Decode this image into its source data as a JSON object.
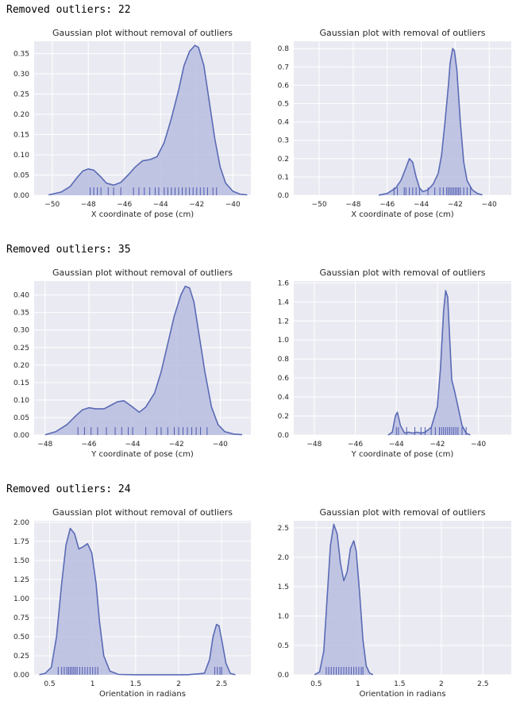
{
  "header_labels": [
    "Removed outliers: 22",
    "Removed outliers: 35",
    "Removed outliers: 24"
  ],
  "colors": {
    "plot_bg": "#eaeaf2",
    "grid": "#ffffff",
    "line": "#5a6bb5",
    "fill": "#b8bde0",
    "rug": "#4e5bb0"
  },
  "chart_data": [
    {
      "type": "area",
      "title": "Gaussian plot without removal of outliers",
      "xlabel": "X coordinate of pose (cm)",
      "xlim": [
        -51,
        -39
      ],
      "ylim": [
        0,
        0.38
      ],
      "xticks": [
        -50,
        -48,
        -46,
        -44,
        -42,
        -40
      ],
      "yticks": [
        0.0,
        0.05,
        0.1,
        0.15,
        0.2,
        0.25,
        0.3,
        0.35
      ],
      "ytick_decimals": 2,
      "grid": true,
      "x": [
        -50.2,
        -49.5,
        -49.0,
        -48.6,
        -48.3,
        -48.0,
        -47.7,
        -47.3,
        -47.0,
        -46.6,
        -46.2,
        -45.8,
        -45.4,
        -45.0,
        -44.6,
        -44.2,
        -43.8,
        -43.4,
        -43.0,
        -42.7,
        -42.4,
        -42.1,
        -41.9,
        -41.6,
        -41.3,
        -41.0,
        -40.7,
        -40.4,
        -40.0,
        -39.6,
        -39.2
      ],
      "y": [
        0.001,
        0.008,
        0.022,
        0.045,
        0.06,
        0.065,
        0.062,
        0.045,
        0.03,
        0.025,
        0.032,
        0.05,
        0.07,
        0.085,
        0.088,
        0.095,
        0.13,
        0.19,
        0.26,
        0.32,
        0.355,
        0.37,
        0.365,
        0.32,
        0.23,
        0.14,
        0.07,
        0.03,
        0.01,
        0.003,
        0.001
      ],
      "rug": [
        -47.9,
        -47.7,
        -47.5,
        -47.3,
        -46.9,
        -46.6,
        -46.2,
        -45.5,
        -45.2,
        -44.9,
        -44.6,
        -44.3,
        -44.1,
        -43.8,
        -43.6,
        -43.4,
        -43.2,
        -43.0,
        -42.8,
        -42.6,
        -42.4,
        -42.2,
        -42.0,
        -41.8,
        -41.6,
        -41.4,
        -41.1,
        -40.9
      ]
    },
    {
      "type": "area",
      "title": "Gaussian plot with removal of outliers",
      "xlabel": "X coordinate of pose (cm)",
      "xlim": [
        -51.5,
        -38.7
      ],
      "ylim": [
        0,
        0.84
      ],
      "xticks": [
        -50,
        -48,
        -46,
        -44,
        -42,
        -40
      ],
      "yticks": [
        0.0,
        0.1,
        0.2,
        0.3,
        0.4,
        0.5,
        0.6,
        0.7,
        0.8
      ],
      "ytick_decimals": 1,
      "grid": true,
      "x": [
        -46.5,
        -46.0,
        -45.5,
        -45.2,
        -44.9,
        -44.7,
        -44.5,
        -44.3,
        -44.1,
        -43.9,
        -43.6,
        -43.3,
        -43.0,
        -42.8,
        -42.6,
        -42.4,
        -42.3,
        -42.15,
        -42.05,
        -41.9,
        -41.7,
        -41.5,
        -41.3,
        -41.0,
        -40.7,
        -40.4
      ],
      "y": [
        0.001,
        0.01,
        0.04,
        0.08,
        0.15,
        0.2,
        0.18,
        0.1,
        0.04,
        0.02,
        0.03,
        0.06,
        0.12,
        0.22,
        0.4,
        0.6,
        0.72,
        0.8,
        0.79,
        0.68,
        0.4,
        0.18,
        0.08,
        0.03,
        0.01,
        0.002
      ],
      "rug": [
        -45.6,
        -45.4,
        -45.0,
        -44.9,
        -44.7,
        -44.5,
        -44.3,
        -44.1,
        -43.6,
        -43.2,
        -42.9,
        -42.7,
        -42.5,
        -42.4,
        -42.3,
        -42.2,
        -42.1,
        -42.0,
        -41.9,
        -41.8,
        -41.7,
        -41.5,
        -41.3,
        -41.1
      ]
    },
    {
      "type": "area",
      "title": "Gaussian plot without removal of outliers",
      "xlabel": "Y coordinate of pose (cm)",
      "xlim": [
        -48.5,
        -38.6
      ],
      "ylim": [
        0,
        0.44
      ],
      "xticks": [
        -48,
        -46,
        -44,
        -42,
        -40
      ],
      "yticks": [
        0.0,
        0.05,
        0.1,
        0.15,
        0.2,
        0.25,
        0.3,
        0.35,
        0.4
      ],
      "ytick_decimals": 2,
      "grid": true,
      "x": [
        -48.0,
        -47.5,
        -47.0,
        -46.6,
        -46.3,
        -46.0,
        -45.7,
        -45.3,
        -45.0,
        -44.7,
        -44.4,
        -44.0,
        -43.7,
        -43.4,
        -43.0,
        -42.7,
        -42.4,
        -42.1,
        -41.8,
        -41.6,
        -41.4,
        -41.2,
        -41.0,
        -40.7,
        -40.4,
        -40.1,
        -39.8,
        -39.4,
        -39.0
      ],
      "y": [
        0.001,
        0.01,
        0.03,
        0.055,
        0.072,
        0.078,
        0.075,
        0.075,
        0.085,
        0.095,
        0.098,
        0.08,
        0.065,
        0.08,
        0.12,
        0.18,
        0.26,
        0.34,
        0.4,
        0.425,
        0.42,
        0.38,
        0.3,
        0.18,
        0.08,
        0.03,
        0.01,
        0.003,
        0.001
      ],
      "rug": [
        -46.5,
        -46.2,
        -45.9,
        -45.6,
        -45.2,
        -44.8,
        -44.5,
        -44.2,
        -44.0,
        -43.4,
        -42.9,
        -42.7,
        -42.4,
        -42.1,
        -41.9,
        -41.7,
        -41.5,
        -41.3,
        -41.1,
        -40.9,
        -40.6
      ]
    },
    {
      "type": "area",
      "title": "Gaussian plot with removal of outliers",
      "xlabel": "Y coordinate of pose (cm)",
      "xlim": [
        -49.0,
        -38.4
      ],
      "ylim": [
        0,
        1.62
      ],
      "xticks": [
        -48,
        -46,
        -44,
        -42,
        -40
      ],
      "yticks": [
        0.0,
        0.2,
        0.4,
        0.6,
        0.8,
        1.0,
        1.2,
        1.4,
        1.6
      ],
      "ytick_decimals": 1,
      "grid": true,
      "x": [
        -44.4,
        -44.2,
        -44.05,
        -43.95,
        -43.8,
        -43.6,
        -43.4,
        -43.2,
        -43.0,
        -42.8,
        -42.6,
        -42.3,
        -42.0,
        -41.85,
        -41.7,
        -41.6,
        -41.5,
        -41.4,
        -41.3,
        -41.15,
        -41.0,
        -40.8,
        -40.6,
        -40.4
      ],
      "y": [
        0.001,
        0.03,
        0.2,
        0.24,
        0.1,
        0.02,
        0.03,
        0.02,
        0.03,
        0.02,
        0.03,
        0.08,
        0.3,
        0.7,
        1.3,
        1.52,
        1.45,
        1.0,
        0.58,
        0.45,
        0.3,
        0.1,
        0.02,
        0.002
      ],
      "rug": [
        -44.0,
        -43.9,
        -43.5,
        -43.1,
        -42.8,
        -42.6,
        -42.3,
        -42.1,
        -41.9,
        -41.8,
        -41.7,
        -41.6,
        -41.5,
        -41.4,
        -41.3,
        -41.2,
        -41.1,
        -41.0,
        -40.8,
        -40.6
      ]
    },
    {
      "type": "area",
      "title": "Gaussian plot without removal of outliers",
      "xlabel": "Orientation in radians",
      "xlim": [
        0.32,
        2.84
      ],
      "ylim": [
        0,
        2.02
      ],
      "xticks": [
        0.5,
        1.0,
        1.5,
        2.0,
        2.5
      ],
      "yticks": [
        0.0,
        0.25,
        0.5,
        0.75,
        1.0,
        1.25,
        1.5,
        1.75,
        2.0
      ],
      "ytick_decimals": 2,
      "grid": true,
      "x": [
        0.38,
        0.45,
        0.52,
        0.58,
        0.64,
        0.69,
        0.74,
        0.79,
        0.84,
        0.89,
        0.94,
        0.99,
        1.04,
        1.08,
        1.13,
        1.2,
        1.3,
        1.5,
        1.8,
        2.1,
        2.3,
        2.36,
        2.4,
        2.44,
        2.47,
        2.51,
        2.55,
        2.6,
        2.66
      ],
      "y": [
        0.001,
        0.02,
        0.1,
        0.5,
        1.2,
        1.7,
        1.92,
        1.85,
        1.65,
        1.68,
        1.72,
        1.6,
        1.2,
        0.7,
        0.25,
        0.05,
        0.005,
        0.001,
        0.001,
        0.001,
        0.02,
        0.2,
        0.5,
        0.66,
        0.64,
        0.4,
        0.15,
        0.02,
        0.001
      ],
      "rug": [
        0.6,
        0.64,
        0.67,
        0.7,
        0.72,
        0.74,
        0.76,
        0.78,
        0.8,
        0.82,
        0.85,
        0.88,
        0.91,
        0.94,
        0.97,
        1.0,
        1.03,
        1.06,
        2.42,
        2.45,
        2.48,
        2.5
      ]
    },
    {
      "type": "area",
      "title": "Gaussian plot with removal of outliers",
      "xlabel": "Orientation in radians",
      "xlim": [
        0.23,
        2.84
      ],
      "ylim": [
        0,
        2.62
      ],
      "xticks": [
        0.5,
        1.0,
        1.5,
        2.0,
        2.5
      ],
      "yticks": [
        0.0,
        0.5,
        1.0,
        1.5,
        2.0,
        2.5
      ],
      "ytick_decimals": 1,
      "grid": true,
      "x": [
        0.48,
        0.54,
        0.59,
        0.63,
        0.67,
        0.71,
        0.75,
        0.79,
        0.83,
        0.87,
        0.91,
        0.95,
        0.98,
        1.02,
        1.06,
        1.1,
        1.14,
        1.18
      ],
      "y": [
        0.001,
        0.05,
        0.4,
        1.3,
        2.2,
        2.56,
        2.4,
        1.9,
        1.6,
        1.75,
        2.15,
        2.28,
        2.1,
        1.4,
        0.6,
        0.15,
        0.03,
        0.001
      ],
      "rug": [
        0.62,
        0.65,
        0.68,
        0.71,
        0.74,
        0.77,
        0.8,
        0.83,
        0.86,
        0.89,
        0.92,
        0.95,
        0.98,
        1.01,
        1.04,
        1.06
      ]
    }
  ]
}
